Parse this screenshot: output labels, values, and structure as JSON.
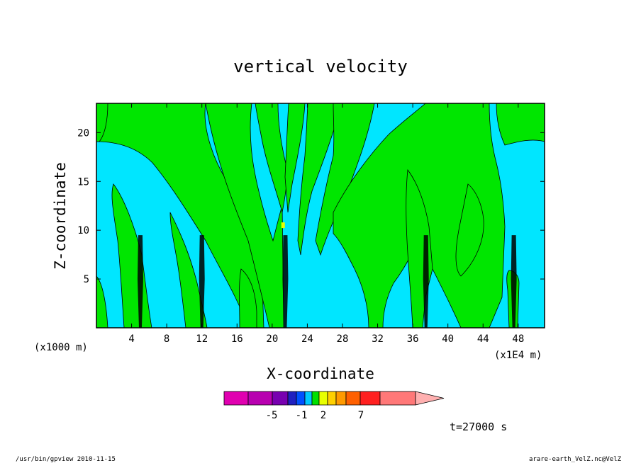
{
  "chart_data": {
    "type": "heatmap",
    "title": "vertical velocity",
    "xlabel": "X-coordinate",
    "ylabel": "Z-coordinate",
    "x_unit_left": "(x1000 m)",
    "x_unit_right": "(x1E4 m)",
    "xlim": [
      0,
      51
    ],
    "ylim": [
      0,
      23
    ],
    "x_ticks": [
      4,
      8,
      12,
      16,
      20,
      24,
      28,
      32,
      36,
      40,
      44,
      48
    ],
    "x_tick_labels": [
      "4",
      "8",
      "12",
      "16",
      "20",
      "24",
      "28",
      "32",
      "36",
      "40",
      "44",
      "48"
    ],
    "y_ticks": [
      5,
      10,
      15,
      20
    ],
    "y_tick_labels": [
      "5",
      "10",
      "15",
      "20"
    ],
    "background_color": "#00e6ff",
    "positive_color": "#00e600",
    "updraft_columns_x": [
      5,
      12,
      21.5,
      37.5,
      47.5
    ],
    "colorbar": {
      "colors": [
        "#e000b0",
        "#b800b0",
        "#7800b0",
        "#2020c0",
        "#0050ff",
        "#00c8ff",
        "#00e000",
        "#e8ff00",
        "#ffd000",
        "#ff9a00",
        "#ff6000",
        "#ff2020",
        "#ff7878",
        "#ffb0b0"
      ],
      "tick_labels": [
        "-5",
        "-1",
        "2",
        "7"
      ]
    },
    "time_label": "t=27000 s"
  },
  "footer": {
    "left": "/usr/bin/gpview   2010-11-15",
    "right": "arare-earth_VelZ.nc@VelZ"
  }
}
